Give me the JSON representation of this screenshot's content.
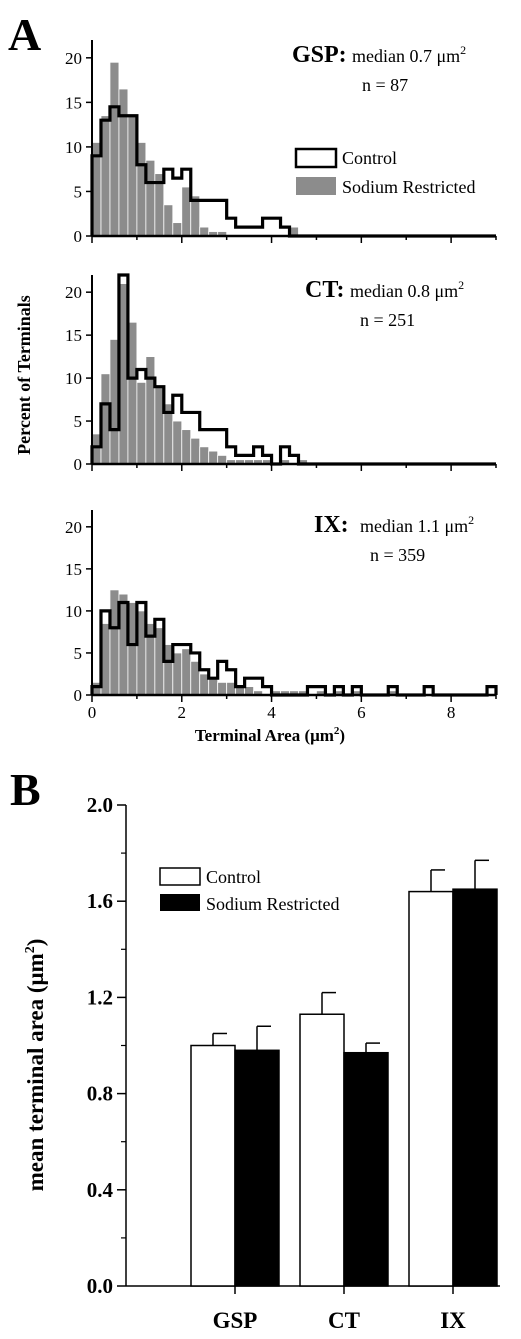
{
  "panels": {
    "a_letter": "A",
    "b_letter": "B"
  },
  "legend_a": {
    "control": "Control",
    "sodium_restricted": "Sodium Restricted"
  },
  "legend_b": {
    "control": "Control",
    "sodium_restricted": "Sodium Restricted"
  },
  "chart_data": [
    {
      "type": "histogram",
      "nerve": "GSP:",
      "median_label": "median",
      "median_value": "0.7 μm",
      "n_label": "n = 87",
      "ylim": [
        0,
        22
      ],
      "yticks": [
        "0",
        "5",
        "10",
        "15",
        "20"
      ],
      "xlim": [
        0,
        9
      ],
      "bin_width": 0.2,
      "series": [
        {
          "name": "Sodium Restricted",
          "style": "gray-filled-bars",
          "color": "#8c8c8c",
          "values": [
            10.5,
            13.5,
            19.5,
            16.5,
            13.5,
            10.5,
            8.5,
            7.0,
            3.5,
            1.5,
            5.5,
            4.5,
            1.0,
            0.5,
            0.5,
            0.0,
            0.0,
            0.0,
            0.0,
            0.0,
            0.0,
            0.0,
            1.0,
            0.0,
            0.0,
            0.0,
            0.0,
            0.0,
            0.0,
            0.0,
            0.0,
            0.0,
            0.0,
            0.0,
            0.0,
            0.0,
            0.0,
            0.0,
            0.0,
            0.0,
            0.0,
            0.0,
            0.0,
            0.0,
            0.0
          ]
        },
        {
          "name": "Control",
          "style": "black-outline-step",
          "color": "#000000",
          "values": [
            9.0,
            13.0,
            14.5,
            13.5,
            13.5,
            8.0,
            6.0,
            6.0,
            7.5,
            6.5,
            7.5,
            4.0,
            4.0,
            4.0,
            4.0,
            2.0,
            1.0,
            1.0,
            1.0,
            2.0,
            2.0,
            1.0,
            0.0,
            0.0,
            0.0,
            0.0,
            0.0,
            0.0,
            0.0,
            0.0,
            0.0,
            0.0,
            0.0,
            0.0,
            0.0,
            0.0,
            0.0,
            0.0,
            0.0,
            0.0,
            0.0,
            0.0,
            0.0,
            0.0,
            0.0
          ]
        }
      ]
    },
    {
      "type": "histogram",
      "nerve": "CT:",
      "median_label": "median",
      "median_value": "0.8 μm",
      "n_label": "n = 251",
      "ylim": [
        0,
        22
      ],
      "yticks": [
        "0",
        "5",
        "10",
        "15",
        "20"
      ],
      "xlim": [
        0,
        9
      ],
      "bin_width": 0.2,
      "series": [
        {
          "name": "Sodium Restricted",
          "style": "gray-filled-bars",
          "color": "#8c8c8c",
          "values": [
            3.5,
            10.5,
            14.5,
            21.0,
            16.5,
            9.5,
            12.5,
            9.0,
            7.0,
            5.0,
            4.0,
            3.0,
            2.0,
            1.5,
            1.0,
            0.5,
            0.5,
            0.5,
            0.5,
            0.5,
            0.0,
            0.5,
            0.0,
            0.5,
            0.0,
            0.0,
            0.0,
            0.0,
            0.0,
            0.0,
            0.0,
            0.0,
            0.0,
            0.0,
            0.0,
            0.0,
            0.0,
            0.0,
            0.0,
            0.0,
            0.0,
            0.0,
            0.0,
            0.0,
            0.0
          ]
        },
        {
          "name": "Control",
          "style": "black-outline-step",
          "color": "#000000",
          "values": [
            2.0,
            7.0,
            4.0,
            22.0,
            10.0,
            11.0,
            10.0,
            9.0,
            6.0,
            8.0,
            6.0,
            6.0,
            4.0,
            4.0,
            4.0,
            2.0,
            1.0,
            1.0,
            2.0,
            1.0,
            0.0,
            2.0,
            1.0,
            0.0,
            0.0,
            0.0,
            0.0,
            0.0,
            0.0,
            0.0,
            0.0,
            0.0,
            0.0,
            0.0,
            0.0,
            0.0,
            0.0,
            0.0,
            0.0,
            0.0,
            0.0,
            0.0,
            0.0,
            0.0,
            0.0
          ]
        }
      ]
    },
    {
      "type": "histogram",
      "nerve": "IX:",
      "median_label": "median",
      "median_value": "1.1 μm",
      "n_label": "n = 359",
      "ylim": [
        0,
        22
      ],
      "yticks": [
        "0",
        "5",
        "10",
        "15",
        "20"
      ],
      "xlim": [
        0,
        9
      ],
      "bin_width": 0.2,
      "series": [
        {
          "name": "Sodium Restricted",
          "style": "gray-filled-bars",
          "color": "#8c8c8c",
          "values": [
            1.5,
            8.5,
            12.5,
            12.0,
            11.0,
            10.0,
            8.5,
            8.0,
            6.0,
            5.0,
            5.5,
            4.0,
            2.5,
            2.0,
            1.5,
            1.5,
            1.0,
            1.0,
            0.5,
            0.0,
            0.5,
            0.5,
            0.5,
            0.5,
            0.0,
            0.5,
            0.0,
            0.5,
            0.0,
            0.5,
            0.0,
            0.0,
            0.0,
            0.5,
            0.0,
            0.0,
            0.0,
            0.0,
            0.0,
            0.0,
            0.0,
            0.0,
            0.0,
            0.0,
            0.0
          ]
        },
        {
          "name": "Control",
          "style": "black-outline-step",
          "color": "#000000",
          "values": [
            1.0,
            10.0,
            8.0,
            11.0,
            6.0,
            11.0,
            7.0,
            9.0,
            4.0,
            6.0,
            6.0,
            5.0,
            3.0,
            2.0,
            4.0,
            3.0,
            1.0,
            2.0,
            2.0,
            1.0,
            0.0,
            0.0,
            0.0,
            0.0,
            1.0,
            1.0,
            0.0,
            1.0,
            0.0,
            1.0,
            0.0,
            0.0,
            0.0,
            1.0,
            0.0,
            0.0,
            0.0,
            1.0,
            0.0,
            0.0,
            0.0,
            0.0,
            0.0,
            0.0,
            1.0
          ]
        }
      ]
    },
    {
      "type": "bar",
      "ylabel": "mean terminal area (μm",
      "ylim": [
        0,
        2.0
      ],
      "yticks": [
        "0.0",
        "0.4",
        "0.8",
        "1.2",
        "1.6",
        "2.0"
      ],
      "categories": [
        "GSP",
        "CT",
        "IX"
      ],
      "series": [
        {
          "name": "Control",
          "color": "#ffffff",
          "values": [
            1.0,
            1.13,
            1.64
          ],
          "errors": [
            0.05,
            0.09,
            0.09
          ]
        },
        {
          "name": "Sodium Restricted",
          "color": "#000000",
          "values": [
            0.98,
            0.97,
            1.65
          ],
          "errors": [
            0.1,
            0.04,
            0.12
          ]
        }
      ]
    }
  ],
  "axis_labels": {
    "hist_y": "Percent of Terminals",
    "hist_x": "Terminal Area (μm",
    "hist_xticks": [
      "0",
      "2",
      "4",
      "6",
      "8"
    ],
    "superscript": "2",
    "closing_paren": ")"
  }
}
